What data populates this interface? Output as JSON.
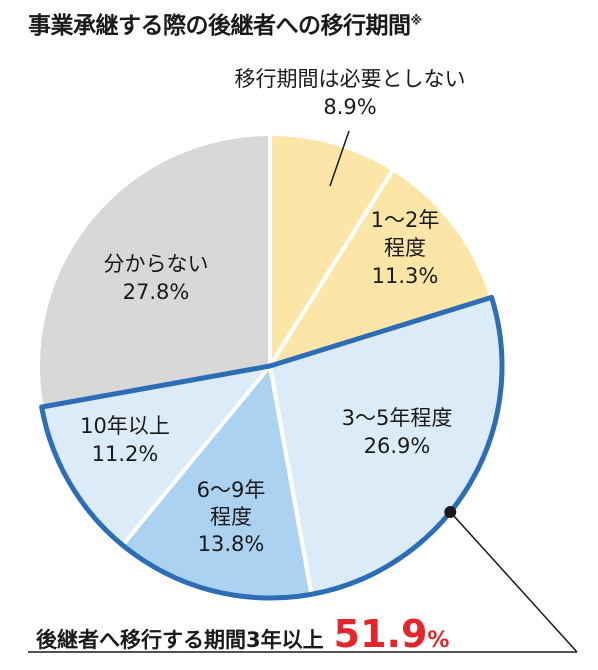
{
  "chart_title": "事業承継する際の後継者への移行期間",
  "title_mark": "※",
  "chart_data": {
    "type": "pie",
    "title": "事業承継する際の後継者への移行期間",
    "start_angle": "12 o'clock, clockwise",
    "slices": [
      {
        "label": "移行期間は必要としない",
        "value": 8.9,
        "value_label": "8.9%",
        "color": "#fbe6a8",
        "highlight": false
      },
      {
        "label": "1～2年程度",
        "lines": [
          "1～2年",
          "程度"
        ],
        "value": 11.3,
        "value_label": "11.3%",
        "color": "#fbe6a8",
        "highlight": false
      },
      {
        "label": "3～5年程度",
        "lines": [
          "3～5年程度"
        ],
        "value": 26.9,
        "value_label": "26.9%",
        "color": "#dcebf8",
        "highlight": true
      },
      {
        "label": "6～9年程度",
        "lines": [
          "6～9年",
          "程度"
        ],
        "value": 13.8,
        "value_label": "13.8%",
        "color": "#acd2f1",
        "highlight": true
      },
      {
        "label": "10年以上",
        "lines": [
          "10年以上"
        ],
        "value": 11.2,
        "value_label": "11.2%",
        "color": "#dcebf8",
        "highlight": true
      },
      {
        "label": "分からない",
        "lines": [
          "分からない"
        ],
        "value": 27.8,
        "value_label": "27.8%",
        "color": "#d8d8d8",
        "highlight": false
      }
    ],
    "highlight_outline_color": "#2d6db5"
  },
  "summary": {
    "text": "後継者へ移行する期間3年以上",
    "value": "51.9",
    "unit": "%"
  }
}
